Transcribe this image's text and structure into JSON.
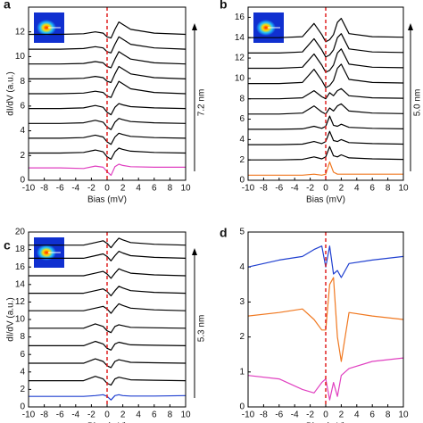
{
  "chart_data": [
    {
      "type": "line",
      "panel": "a",
      "x_label": "Bias (mV)",
      "y_label": "dI/dV (a.u.)",
      "scale_label": "7.2 nm",
      "xlim": [
        -10,
        10
      ],
      "xticks": [
        -10,
        -8,
        -6,
        -4,
        -2,
        0,
        2,
        4,
        6,
        8,
        10
      ],
      "ylim": [
        0,
        14
      ],
      "yticks": [
        0,
        2,
        4,
        6,
        8,
        10,
        12
      ],
      "vline": 0,
      "vline_color": "#e02020",
      "x": [
        -10,
        -6,
        -3,
        -1.5,
        -0.5,
        0,
        0.5,
        1,
        1.5,
        2,
        3,
        6,
        10
      ],
      "series": [
        {
          "color": "#e040c0",
          "values": [
            1,
            1,
            0.95,
            1.15,
            1.05,
            0.7,
            0.4,
            1.1,
            1.3,
            1.2,
            1.1,
            1.05,
            1.05
          ]
        },
        {
          "color": "#000000",
          "values": [
            2.2,
            2.2,
            2.25,
            2.45,
            2.3,
            1.9,
            1.7,
            2.3,
            2.6,
            2.5,
            2.35,
            2.25,
            2.2
          ]
        },
        {
          "color": "#000000",
          "values": [
            3.4,
            3.4,
            3.45,
            3.65,
            3.5,
            3.1,
            2.9,
            3.5,
            3.8,
            3.7,
            3.55,
            3.45,
            3.4
          ]
        },
        {
          "color": "#000000",
          "values": [
            4.6,
            4.6,
            4.65,
            4.85,
            4.7,
            4.3,
            4.1,
            4.7,
            5.0,
            4.9,
            4.75,
            4.65,
            4.6
          ]
        },
        {
          "color": "#000000",
          "values": [
            5.8,
            5.8,
            5.85,
            6.05,
            5.9,
            5.5,
            5.3,
            5.9,
            6.2,
            6.1,
            5.95,
            5.85,
            5.8
          ]
        },
        {
          "color": "#000000",
          "values": [
            7,
            7,
            7.05,
            7.2,
            7.1,
            6.8,
            6.7,
            7.4,
            8.0,
            7.8,
            7.4,
            7.1,
            7
          ]
        },
        {
          "color": "#000000",
          "values": [
            8.2,
            8.2,
            8.25,
            8.4,
            8.3,
            8.0,
            7.9,
            8.6,
            9.2,
            9.0,
            8.6,
            8.3,
            8.2
          ]
        },
        {
          "color": "#000000",
          "values": [
            9.4,
            9.4,
            9.45,
            9.6,
            9.5,
            9.2,
            9.1,
            9.8,
            10.4,
            10.2,
            9.8,
            9.5,
            9.4
          ]
        },
        {
          "color": "#000000",
          "values": [
            10.6,
            10.6,
            10.65,
            10.8,
            10.7,
            10.4,
            10.3,
            11.0,
            11.6,
            11.4,
            11.0,
            10.7,
            10.6
          ]
        },
        {
          "color": "#000000",
          "values": [
            11.8,
            11.8,
            11.85,
            12.0,
            11.9,
            11.6,
            11.5,
            12.2,
            12.8,
            12.6,
            12.2,
            11.9,
            11.8
          ]
        }
      ]
    },
    {
      "type": "line",
      "panel": "b",
      "x_label": "Bias (mV)",
      "scale_label": "5.0 nm",
      "xlim": [
        -10,
        10
      ],
      "xticks": [
        -10,
        -8,
        -6,
        -4,
        -2,
        0,
        2,
        4,
        6,
        8,
        10
      ],
      "ylim": [
        0,
        17
      ],
      "yticks": [
        0,
        2,
        4,
        6,
        8,
        10,
        12,
        14,
        16
      ],
      "vline": 0,
      "vline_color": "#e02020",
      "x": [
        -10,
        -6,
        -3,
        -1.5,
        -0.5,
        0,
        0.5,
        1,
        1.5,
        2,
        3,
        6,
        10
      ],
      "series": [
        {
          "color": "#f07820",
          "values": [
            0.5,
            0.5,
            0.5,
            0.6,
            0.5,
            0.6,
            1.8,
            0.8,
            0.6,
            0.6,
            0.6,
            0.6,
            0.6
          ]
        },
        {
          "color": "#000000",
          "values": [
            2,
            2,
            2.05,
            2.3,
            2.1,
            2.3,
            3.3,
            2.4,
            2.3,
            2.5,
            2.2,
            2.1,
            2.05
          ]
        },
        {
          "color": "#000000",
          "values": [
            3.5,
            3.5,
            3.55,
            3.8,
            3.6,
            3.8,
            4.8,
            3.9,
            3.8,
            4.0,
            3.7,
            3.6,
            3.55
          ]
        },
        {
          "color": "#000000",
          "values": [
            5,
            5,
            5.05,
            5.3,
            5.1,
            5.3,
            6.3,
            5.4,
            5.3,
            5.5,
            5.2,
            5.1,
            5.05
          ]
        },
        {
          "color": "#000000",
          "values": [
            6.5,
            6.5,
            6.6,
            7.3,
            6.7,
            6.5,
            7.1,
            6.8,
            7.3,
            7.5,
            6.8,
            6.6,
            6.55
          ]
        },
        {
          "color": "#000000",
          "values": [
            8,
            8,
            8.1,
            8.8,
            8.2,
            8,
            8.6,
            8.3,
            8.8,
            9,
            8.3,
            8.1,
            8.05
          ]
        },
        {
          "color": "#000000",
          "values": [
            9.5,
            9.5,
            9.6,
            10.9,
            9.8,
            9.1,
            9.3,
            9.8,
            11,
            11.4,
            9.9,
            9.6,
            9.55
          ]
        },
        {
          "color": "#000000",
          "values": [
            11,
            11,
            11.1,
            12.4,
            11.3,
            10.6,
            10.8,
            11.3,
            12.5,
            12.9,
            11.4,
            11.1,
            11.05
          ]
        },
        {
          "color": "#000000",
          "values": [
            12.5,
            12.5,
            12.6,
            13.9,
            12.8,
            12.1,
            12.3,
            12.8,
            14,
            14.4,
            12.9,
            12.6,
            12.55
          ]
        },
        {
          "color": "#000000",
          "values": [
            14,
            14,
            14.1,
            15.4,
            14.3,
            13.6,
            13.8,
            14.3,
            15.5,
            15.9,
            14.4,
            14.1,
            14.05
          ]
        }
      ]
    },
    {
      "type": "line",
      "panel": "c",
      "x_label": "Bias (mV)",
      "y_label": "dI/dV (a.u.)",
      "scale_label": "5.3 nm",
      "xlim": [
        -10,
        10
      ],
      "xticks": [
        -10,
        -8,
        -6,
        -4,
        -2,
        0,
        2,
        4,
        6,
        8,
        10
      ],
      "ylim": [
        0,
        20
      ],
      "yticks": [
        0,
        2,
        4,
        6,
        8,
        10,
        12,
        14,
        16,
        18,
        20
      ],
      "vline": 0,
      "vline_color": "#e02020",
      "x": [
        -10,
        -6,
        -3,
        -1.5,
        -0.5,
        0,
        0.5,
        1,
        1.5,
        2,
        3,
        6,
        10
      ],
      "series": [
        {
          "color": "#2040d0",
          "values": [
            1.2,
            1.2,
            1.2,
            1.3,
            1.4,
            1.2,
            0.8,
            1.3,
            1.4,
            1.3,
            1.25,
            1.25,
            1.3
          ]
        },
        {
          "color": "#000000",
          "values": [
            3,
            3,
            3,
            3.5,
            3.2,
            2.7,
            2.5,
            3.2,
            3.4,
            3.3,
            3.1,
            3.05,
            3
          ]
        },
        {
          "color": "#000000",
          "values": [
            5,
            5,
            5,
            5.5,
            5.2,
            4.7,
            4.5,
            5.2,
            5.4,
            5.3,
            5.1,
            5.05,
            5
          ]
        },
        {
          "color": "#000000",
          "values": [
            7,
            7,
            7,
            7.5,
            7.2,
            6.7,
            6.5,
            7.2,
            7.4,
            7.3,
            7.1,
            7.05,
            7
          ]
        },
        {
          "color": "#000000",
          "values": [
            9,
            9,
            9,
            9.5,
            9.2,
            8.7,
            8.5,
            9.2,
            9.4,
            9.3,
            9.1,
            9.05,
            9
          ]
        },
        {
          "color": "#000000",
          "values": [
            11,
            11,
            11,
            11.3,
            11.5,
            11.2,
            10.7,
            11.3,
            11.8,
            11.6,
            11.3,
            11.1,
            11
          ]
        },
        {
          "color": "#000000",
          "values": [
            13,
            13,
            13,
            13.3,
            13.5,
            13.2,
            12.7,
            13.3,
            13.8,
            13.6,
            13.3,
            13.1,
            13
          ]
        },
        {
          "color": "#000000",
          "values": [
            15,
            15,
            15,
            15.3,
            15.5,
            15.2,
            14.7,
            15.3,
            15.8,
            15.6,
            15.3,
            15.1,
            15
          ]
        },
        {
          "color": "#000000",
          "values": [
            17,
            17,
            17,
            17.3,
            17.5,
            17.2,
            16.7,
            17.3,
            17.8,
            17.6,
            17.3,
            17.1,
            17
          ]
        },
        {
          "color": "#000000",
          "values": [
            18.5,
            18.5,
            18.5,
            18.8,
            19,
            18.7,
            18.2,
            18.8,
            19.3,
            19.1,
            18.8,
            18.6,
            18.5
          ]
        }
      ]
    },
    {
      "type": "line",
      "panel": "d",
      "x_label": "Bias (mV)",
      "xlim": [
        -10,
        10
      ],
      "xticks": [
        -10,
        -8,
        -6,
        -4,
        -2,
        0,
        2,
        4,
        6,
        8,
        10
      ],
      "ylim": [
        0,
        5
      ],
      "yticks": [
        0,
        1,
        2,
        3,
        4,
        5
      ],
      "vline": 0,
      "vline_color": "#e02020",
      "x": [
        -10,
        -6,
        -3,
        -1.5,
        -0.5,
        0,
        0.5,
        1,
        1.5,
        2,
        3,
        6,
        10
      ],
      "series": [
        {
          "color": "#2040d0",
          "values": [
            4.0,
            4.2,
            4.3,
            4.5,
            4.6,
            4.0,
            4.6,
            3.8,
            3.9,
            3.7,
            4.1,
            4.2,
            4.3
          ]
        },
        {
          "color": "#f07820",
          "values": [
            2.6,
            2.7,
            2.8,
            2.5,
            2.2,
            2.2,
            3.5,
            3.7,
            2.0,
            1.3,
            2.7,
            2.6,
            2.5
          ]
        },
        {
          "color": "#e040c0",
          "values": [
            0.9,
            0.8,
            0.5,
            0.4,
            0.7,
            0.8,
            0.2,
            0.7,
            0.3,
            0.9,
            1.1,
            1.3,
            1.4
          ]
        }
      ]
    }
  ]
}
